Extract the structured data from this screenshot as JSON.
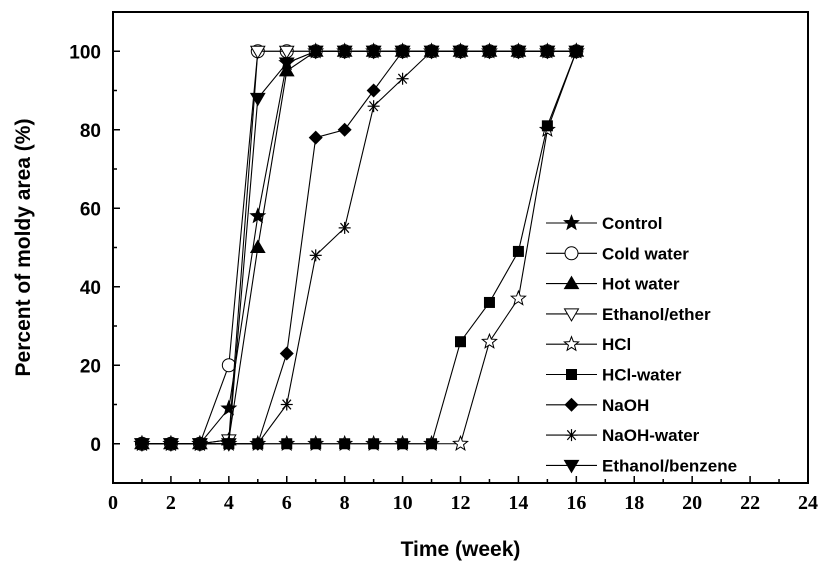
{
  "chart_data": {
    "type": "line",
    "title": "",
    "xlabel": "Time (week)",
    "ylabel": "Percent of moldy area (%)",
    "xlim": [
      0,
      24
    ],
    "ylim": [
      -10,
      110
    ],
    "xticks": [
      0,
      2,
      4,
      6,
      8,
      10,
      12,
      14,
      16,
      18,
      20,
      22,
      24
    ],
    "yticks": [
      0,
      20,
      40,
      60,
      80,
      100
    ],
    "grid": false,
    "legend_position": "right",
    "colors": {
      "line": "#000000",
      "background": "#ffffff"
    },
    "series": [
      {
        "name": "Control",
        "marker": "star-filled",
        "x": [
          1,
          2,
          3,
          4,
          5,
          6,
          7,
          8,
          9,
          10,
          11,
          12,
          13,
          14,
          15,
          16
        ],
        "y": [
          0,
          0,
          0,
          9,
          58,
          97,
          100,
          100,
          100,
          100,
          100,
          100,
          100,
          100,
          100,
          100
        ]
      },
      {
        "name": "Cold water",
        "marker": "circle-open",
        "x": [
          1,
          2,
          3,
          4,
          5,
          6,
          7,
          8,
          9,
          10,
          11,
          12,
          13,
          14,
          15,
          16
        ],
        "y": [
          0,
          0,
          0,
          20,
          100,
          100,
          100,
          100,
          100,
          100,
          100,
          100,
          100,
          100,
          100,
          100
        ]
      },
      {
        "name": "Hot water",
        "marker": "triangle-up-filled",
        "x": [
          1,
          2,
          3,
          4,
          5,
          6,
          7,
          8,
          9,
          10,
          11,
          12,
          13,
          14,
          15,
          16
        ],
        "y": [
          0,
          0,
          0,
          1,
          50,
          95,
          100,
          100,
          100,
          100,
          100,
          100,
          100,
          100,
          100,
          100
        ]
      },
      {
        "name": "Ethanol/ether",
        "marker": "triangle-down-open",
        "x": [
          1,
          2,
          3,
          4,
          5,
          6,
          7,
          8,
          9,
          10,
          11,
          12,
          13,
          14,
          15,
          16
        ],
        "y": [
          0,
          0,
          0,
          1,
          100,
          100,
          100,
          100,
          100,
          100,
          100,
          100,
          100,
          100,
          100,
          100
        ]
      },
      {
        "name": "HCl",
        "marker": "star-open",
        "x": [
          1,
          2,
          3,
          4,
          5,
          6,
          7,
          8,
          9,
          10,
          11,
          12,
          13,
          14,
          15,
          16
        ],
        "y": [
          0,
          0,
          0,
          0,
          0,
          0,
          0,
          0,
          0,
          0,
          0,
          0,
          26,
          37,
          80,
          100
        ]
      },
      {
        "name": "HCl-water",
        "marker": "square-filled",
        "x": [
          1,
          2,
          3,
          4,
          5,
          6,
          7,
          8,
          9,
          10,
          11,
          12,
          13,
          14,
          15,
          16
        ],
        "y": [
          0,
          0,
          0,
          0,
          0,
          0,
          0,
          0,
          0,
          0,
          0,
          26,
          36,
          49,
          81,
          100
        ]
      },
      {
        "name": "NaOH",
        "marker": "diamond-filled",
        "x": [
          1,
          2,
          3,
          4,
          5,
          6,
          7,
          8,
          9,
          10,
          11,
          12,
          13,
          14,
          15,
          16
        ],
        "y": [
          0,
          0,
          0,
          0,
          0,
          23,
          78,
          80,
          90,
          100,
          100,
          100,
          100,
          100,
          100,
          100
        ]
      },
      {
        "name": "NaOH-water",
        "marker": "asterisk",
        "x": [
          1,
          2,
          3,
          4,
          5,
          6,
          7,
          8,
          9,
          10,
          11,
          12,
          13,
          14,
          15,
          16
        ],
        "y": [
          0,
          0,
          0,
          0,
          0,
          10,
          48,
          55,
          86,
          93,
          100,
          100,
          100,
          100,
          100,
          100
        ]
      },
      {
        "name": "Ethanol/benzene",
        "marker": "triangle-down-filled",
        "x": [
          1,
          2,
          3,
          4,
          5,
          6,
          7,
          8,
          9,
          10,
          11,
          12,
          13,
          14,
          15,
          16
        ],
        "y": [
          0,
          0,
          0,
          0,
          88,
          97,
          100,
          100,
          100,
          100,
          100,
          100,
          100,
          100,
          100,
          100
        ]
      }
    ]
  }
}
